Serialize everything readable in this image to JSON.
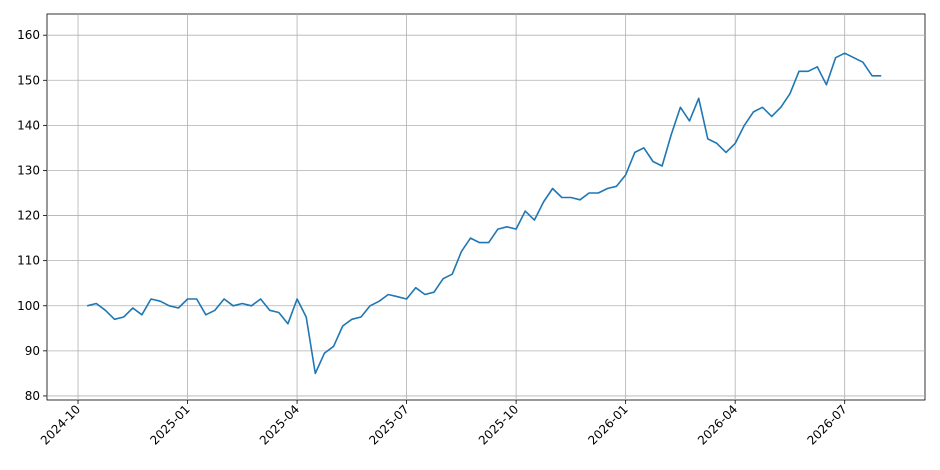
{
  "chart_data": {
    "type": "line",
    "x": [
      0.25,
      0.5,
      0.75,
      1,
      1.25,
      1.5,
      1.75,
      2,
      2.25,
      2.5,
      2.75,
      3,
      3.25,
      3.5,
      3.75,
      4,
      4.25,
      4.5,
      4.75,
      5,
      5.25,
      5.5,
      5.75,
      6,
      6.25,
      6.5,
      6.75,
      7,
      7.25,
      7.5,
      7.75,
      8,
      8.25,
      8.5,
      8.75,
      9,
      9.25,
      9.5,
      9.75,
      10,
      10.25,
      10.5,
      10.75,
      11,
      11.25,
      11.5,
      11.75,
      12,
      12.25,
      12.5,
      12.75,
      13,
      13.25,
      13.5,
      13.75,
      14,
      14.25,
      14.5,
      14.75,
      15,
      15.25,
      15.5,
      15.75,
      16,
      16.25,
      16.5,
      16.75,
      17,
      17.25,
      17.5,
      17.75,
      18,
      18.25,
      18.5,
      18.75,
      19,
      19.25,
      19.5,
      19.75,
      20,
      20.25,
      20.5,
      20.75,
      21,
      21.25,
      21.5,
      21.75,
      22
    ],
    "series": [
      {
        "color": "#1f77b4",
        "values": [
          100,
          100.5,
          99,
          97,
          97.5,
          99.5,
          98,
          101.5,
          101,
          100,
          99.5,
          101.5,
          101.5,
          98,
          99,
          101.5,
          100,
          100.5,
          100,
          101.5,
          99,
          98.5,
          96,
          101.5,
          97.5,
          85,
          89.5,
          91,
          95.5,
          97,
          97.5,
          100,
          101,
          102.5,
          102,
          101.5,
          104,
          102.5,
          103,
          106,
          107,
          112,
          115,
          114,
          114,
          117,
          117.5,
          117,
          121,
          119,
          123,
          126,
          124,
          124,
          123.5,
          125,
          125,
          126,
          126.5,
          129,
          134,
          135,
          132,
          131,
          138,
          144,
          141,
          146,
          137,
          136,
          134,
          136,
          140,
          143,
          144,
          142,
          144,
          147,
          152,
          152,
          153,
          149,
          155,
          156,
          155,
          154,
          151,
          151
        ]
      }
    ],
    "xlim": [
      -0.85,
      23.2
    ],
    "xticks": [
      {
        "value": 0,
        "label": "2024-10"
      },
      {
        "value": 3,
        "label": "2025-01"
      },
      {
        "value": 6,
        "label": "2025-04"
      },
      {
        "value": 9,
        "label": "2025-07"
      },
      {
        "value": 12,
        "label": "2025-10"
      },
      {
        "value": 15,
        "label": "2026-01"
      },
      {
        "value": 18,
        "label": "2026-04"
      },
      {
        "value": 21,
        "label": "2026-07"
      }
    ],
    "ylim": [
      79.1,
      164.7
    ],
    "yticks": [
      80,
      90,
      100,
      110,
      120,
      130,
      140,
      150,
      160
    ],
    "grid": true
  }
}
